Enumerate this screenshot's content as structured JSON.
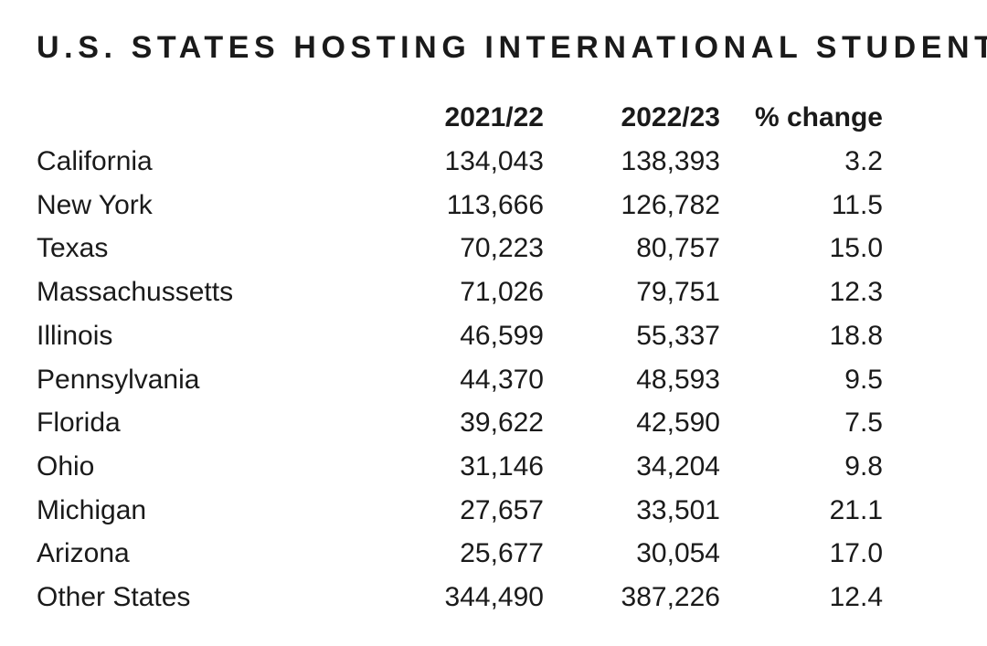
{
  "title": "U.S. STATES HOSTING INTERNATIONAL STUDENTS",
  "chart_data": {
    "type": "table",
    "title": "U.S. STATES HOSTING INTERNATIONAL STUDENTS",
    "columns": [
      "",
      "2021/22",
      "2022/23",
      "% change"
    ],
    "rows": [
      {
        "state": "California",
        "y2021_22": "134,043",
        "y2022_23": "138,393",
        "pct_change": "3.2"
      },
      {
        "state": "New York",
        "y2021_22": "113,666",
        "y2022_23": "126,782",
        "pct_change": "11.5"
      },
      {
        "state": "Texas",
        "y2021_22": "70,223",
        "y2022_23": "80,757",
        "pct_change": "15.0"
      },
      {
        "state": "Massachussetts",
        "y2021_22": "71,026",
        "y2022_23": "79,751",
        "pct_change": "12.3"
      },
      {
        "state": "Illinois",
        "y2021_22": "46,599",
        "y2022_23": "55,337",
        "pct_change": "18.8"
      },
      {
        "state": "Pennsylvania",
        "y2021_22": "44,370",
        "y2022_23": "48,593",
        "pct_change": "9.5"
      },
      {
        "state": "Florida",
        "y2021_22": "39,622",
        "y2022_23": "42,590",
        "pct_change": "7.5"
      },
      {
        "state": "Ohio",
        "y2021_22": "31,146",
        "y2022_23": "34,204",
        "pct_change": "9.8"
      },
      {
        "state": "Michigan",
        "y2021_22": "27,657",
        "y2022_23": "33,501",
        "pct_change": "21.1"
      },
      {
        "state": "Arizona",
        "y2021_22": "25,677",
        "y2022_23": "30,054",
        "pct_change": "17.0"
      },
      {
        "state": "Other States",
        "y2021_22": "344,490",
        "y2022_23": "387,226",
        "pct_change": "12.4"
      }
    ]
  }
}
